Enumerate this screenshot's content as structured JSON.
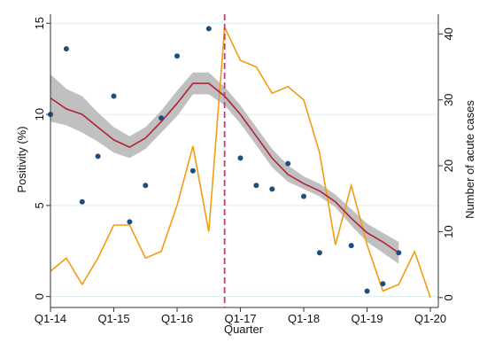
{
  "chart_data": {
    "type": "line",
    "xlabel": "Quarter",
    "ylabel_left": "Positivity (%)",
    "ylabel_right": "Number of acute cases",
    "x_tick_labels": [
      "Q1-14",
      "Q1-15",
      "Q1-16",
      "Q1-17",
      "Q1-18",
      "Q1-19",
      "Q1-20"
    ],
    "x_range": [
      0,
      24.5
    ],
    "y_left_ticks": [
      0,
      5,
      10,
      15
    ],
    "y_left_range": [
      -0.6,
      15.5
    ],
    "y_right_ticks": [
      0,
      10,
      20,
      30,
      40
    ],
    "y_right_range": [
      -1.5,
      43
    ],
    "grid": true,
    "vertical_marker_x": 11,
    "series": [
      {
        "kind": "scatter",
        "axis": "left",
        "color": "#1f4e79",
        "x": [
          0,
          1,
          2,
          3,
          4,
          5,
          6,
          7,
          8,
          9,
          10,
          11,
          12,
          13,
          14,
          15,
          16,
          17,
          18,
          19,
          20,
          21,
          22,
          23
        ],
        "y": [
          10.0,
          13.6,
          5.2,
          7.7,
          11.0,
          4.1,
          6.1,
          9.8,
          13.2,
          6.9,
          14.7,
          null,
          7.6,
          6.1,
          5.9,
          7.3,
          5.5,
          2.4,
          null,
          2.8,
          0.3,
          0.7,
          2.4,
          null
        ]
      },
      {
        "kind": "line",
        "axis": "left",
        "color": "#b22234",
        "x": [
          0,
          1,
          2,
          3,
          4,
          5,
          6,
          7,
          8,
          9,
          10,
          11,
          12,
          13,
          14,
          15,
          16,
          17,
          18,
          19,
          20,
          21,
          22
        ],
        "y": [
          10.9,
          10.3,
          10.0,
          9.3,
          8.6,
          8.2,
          8.7,
          9.6,
          10.6,
          11.7,
          11.7,
          11.0,
          10.0,
          8.8,
          7.6,
          6.7,
          6.2,
          5.8,
          5.2,
          4.3,
          3.5,
          3.0,
          2.4
        ]
      },
      {
        "kind": "band",
        "axis": "left",
        "color": "#c0c0c0",
        "x": [
          0,
          1,
          2,
          3,
          4,
          5,
          6,
          7,
          8,
          9,
          10,
          11,
          12,
          13,
          14,
          15,
          16,
          17,
          18,
          19,
          20,
          21,
          22
        ],
        "lower": [
          9.6,
          9.4,
          9.0,
          8.5,
          7.9,
          7.6,
          8.1,
          9.0,
          9.9,
          11.1,
          11.1,
          10.5,
          9.5,
          8.3,
          7.1,
          6.3,
          5.9,
          5.5,
          4.9,
          3.9,
          3.0,
          2.4,
          1.8
        ],
        "upper": [
          12.2,
          11.4,
          11.0,
          10.1,
          9.3,
          8.8,
          9.3,
          10.2,
          11.3,
          12.3,
          12.3,
          11.5,
          10.5,
          9.3,
          8.1,
          7.2,
          6.6,
          6.2,
          5.6,
          4.8,
          4.0,
          3.5,
          3.0
        ]
      },
      {
        "kind": "line",
        "axis": "right",
        "color": "#f39c12",
        "x": [
          0,
          1,
          2,
          3,
          4,
          5,
          6,
          7,
          8,
          9,
          10,
          11,
          12,
          13,
          14,
          15,
          16,
          17,
          18,
          19,
          20,
          21,
          22,
          23,
          24
        ],
        "y": [
          4,
          6,
          2,
          6,
          11,
          11,
          6,
          7,
          14,
          23,
          10,
          41,
          36,
          35,
          31,
          32,
          30,
          22,
          8,
          17,
          8,
          1,
          2,
          7,
          0
        ]
      }
    ]
  }
}
